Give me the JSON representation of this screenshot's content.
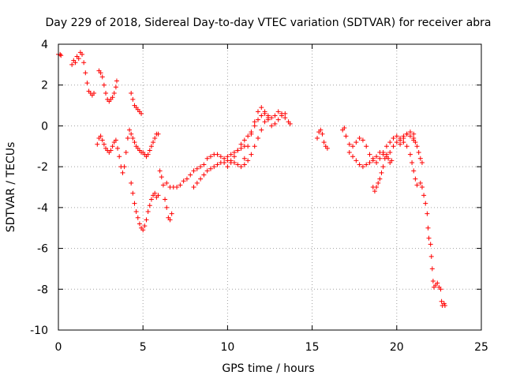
{
  "chart_data": {
    "type": "scatter",
    "title": "Day 229 of 2018, Sidereal Day-to-day VTEC variation (SDTVAR) for receiver abra",
    "xlabel": "GPS time / hours",
    "ylabel": "SDTVAR / TECUs",
    "xlim": [
      0,
      25
    ],
    "ylim": [
      -10,
      4
    ],
    "xticks": [
      "0",
      "5",
      "10",
      "15",
      "20",
      "25"
    ],
    "yticks": [
      "4",
      "2",
      "0",
      "-2",
      "-4",
      "-6",
      "-8",
      "-10"
    ],
    "grid": true,
    "marker": "+",
    "marker_color": "#ff0000",
    "series": [
      {
        "name": "SDTVAR",
        "points": [
          [
            0.0,
            3.5
          ],
          [
            0.1,
            3.5
          ],
          [
            0.15,
            3.45
          ],
          [
            0.8,
            3.0
          ],
          [
            0.9,
            3.2
          ],
          [
            1.0,
            3.1
          ],
          [
            1.1,
            3.4
          ],
          [
            1.2,
            3.3
          ],
          [
            1.3,
            3.6
          ],
          [
            1.4,
            3.5
          ],
          [
            1.5,
            3.1
          ],
          [
            1.6,
            2.6
          ],
          [
            1.7,
            2.1
          ],
          [
            1.8,
            1.7
          ],
          [
            1.9,
            1.6
          ],
          [
            2.0,
            1.5
          ],
          [
            2.1,
            1.6
          ],
          [
            2.4,
            2.7
          ],
          [
            2.5,
            2.6
          ],
          [
            2.6,
            2.4
          ],
          [
            2.7,
            2.0
          ],
          [
            2.8,
            1.6
          ],
          [
            2.9,
            1.3
          ],
          [
            3.0,
            1.2
          ],
          [
            3.1,
            1.3
          ],
          [
            3.2,
            1.4
          ],
          [
            3.3,
            1.6
          ],
          [
            3.4,
            1.9
          ],
          [
            3.45,
            2.2
          ],
          [
            2.3,
            -0.9
          ],
          [
            2.4,
            -0.6
          ],
          [
            2.5,
            -0.5
          ],
          [
            2.6,
            -0.7
          ],
          [
            2.7,
            -0.9
          ],
          [
            2.8,
            -1.1
          ],
          [
            2.9,
            -1.2
          ],
          [
            3.0,
            -1.3
          ],
          [
            3.1,
            -1.2
          ],
          [
            3.2,
            -1.0
          ],
          [
            3.3,
            -0.8
          ],
          [
            3.4,
            -0.7
          ],
          [
            3.5,
            -1.1
          ],
          [
            3.6,
            -1.5
          ],
          [
            3.7,
            -2.0
          ],
          [
            3.8,
            -2.3
          ],
          [
            3.9,
            -2.0
          ],
          [
            4.0,
            -1.3
          ],
          [
            4.1,
            -0.6
          ],
          [
            4.2,
            -0.2
          ],
          [
            4.3,
            -0.4
          ],
          [
            4.4,
            -0.6
          ],
          [
            4.5,
            -0.8
          ],
          [
            4.6,
            -1.0
          ],
          [
            4.7,
            -1.1
          ],
          [
            4.8,
            -1.2
          ],
          [
            4.9,
            -1.3
          ],
          [
            5.0,
            -1.3
          ],
          [
            5.1,
            -1.4
          ],
          [
            5.2,
            -1.5
          ],
          [
            5.3,
            -1.4
          ],
          [
            5.4,
            -1.2
          ],
          [
            5.5,
            -1.0
          ],
          [
            5.6,
            -0.8
          ],
          [
            5.7,
            -0.6
          ],
          [
            5.8,
            -0.4
          ],
          [
            5.9,
            -0.4
          ],
          [
            4.3,
            1.6
          ],
          [
            4.4,
            1.3
          ],
          [
            4.5,
            1.0
          ],
          [
            4.6,
            0.9
          ],
          [
            4.7,
            0.8
          ],
          [
            4.8,
            0.7
          ],
          [
            4.9,
            0.6
          ],
          [
            4.3,
            -2.8
          ],
          [
            4.4,
            -3.3
          ],
          [
            4.5,
            -3.8
          ],
          [
            4.6,
            -4.2
          ],
          [
            4.7,
            -4.5
          ],
          [
            4.8,
            -4.8
          ],
          [
            4.9,
            -5.0
          ],
          [
            5.0,
            -5.1
          ],
          [
            5.1,
            -4.9
          ],
          [
            5.2,
            -4.6
          ],
          [
            5.3,
            -4.2
          ],
          [
            5.4,
            -3.9
          ],
          [
            5.5,
            -3.6
          ],
          [
            5.6,
            -3.4
          ],
          [
            5.7,
            -3.3
          ],
          [
            5.8,
            -3.5
          ],
          [
            5.9,
            -3.4
          ],
          [
            6.0,
            -2.2
          ],
          [
            6.1,
            -2.5
          ],
          [
            6.2,
            -2.9
          ],
          [
            6.3,
            -3.6
          ],
          [
            6.4,
            -4.0
          ],
          [
            6.5,
            -4.5
          ],
          [
            6.6,
            -4.6
          ],
          [
            6.7,
            -4.3
          ],
          [
            6.4,
            -2.8
          ],
          [
            6.6,
            -3.0
          ],
          [
            6.8,
            -3.0
          ],
          [
            7.0,
            -3.0
          ],
          [
            7.2,
            -2.9
          ],
          [
            7.4,
            -2.7
          ],
          [
            7.6,
            -2.6
          ],
          [
            7.8,
            -2.4
          ],
          [
            8.0,
            -2.2
          ],
          [
            8.2,
            -2.1
          ],
          [
            8.4,
            -2.0
          ],
          [
            8.6,
            -1.9
          ],
          [
            8.8,
            -1.6
          ],
          [
            9.0,
            -1.5
          ],
          [
            9.2,
            -1.4
          ],
          [
            9.4,
            -1.4
          ],
          [
            9.6,
            -1.5
          ],
          [
            9.8,
            -1.6
          ],
          [
            10.0,
            -1.5
          ],
          [
            10.2,
            -1.4
          ],
          [
            10.4,
            -1.3
          ],
          [
            10.6,
            -1.2
          ],
          [
            10.8,
            -1.1
          ],
          [
            11.0,
            -1.0
          ],
          [
            8.0,
            -3.0
          ],
          [
            8.2,
            -2.8
          ],
          [
            8.4,
            -2.6
          ],
          [
            8.6,
            -2.4
          ],
          [
            8.8,
            -2.2
          ],
          [
            9.0,
            -2.1
          ],
          [
            9.2,
            -2.0
          ],
          [
            9.4,
            -1.9
          ],
          [
            9.6,
            -1.8
          ],
          [
            9.8,
            -1.8
          ],
          [
            10.0,
            -1.7
          ],
          [
            10.2,
            -1.7
          ],
          [
            10.4,
            -1.8
          ],
          [
            10.6,
            -1.9
          ],
          [
            10.8,
            -2.0
          ],
          [
            11.0,
            -1.9
          ],
          [
            11.2,
            -1.7
          ],
          [
            11.4,
            -1.4
          ],
          [
            11.6,
            -1.0
          ],
          [
            11.8,
            -0.6
          ],
          [
            12.0,
            -0.2
          ],
          [
            12.2,
            0.2
          ],
          [
            12.4,
            0.4
          ],
          [
            10.0,
            -2.0
          ],
          [
            10.2,
            -1.8
          ],
          [
            10.4,
            -1.5
          ],
          [
            10.6,
            -1.2
          ],
          [
            10.8,
            -0.9
          ],
          [
            11.0,
            -0.7
          ],
          [
            11.2,
            -0.5
          ],
          [
            11.4,
            -0.3
          ],
          [
            11.6,
            0.0
          ],
          [
            11.8,
            0.3
          ],
          [
            12.0,
            0.5
          ],
          [
            12.2,
            0.6
          ],
          [
            12.4,
            0.5
          ],
          [
            12.6,
            0.4
          ],
          [
            12.8,
            0.5
          ],
          [
            13.0,
            0.7
          ],
          [
            13.2,
            0.6
          ],
          [
            13.4,
            0.4
          ],
          [
            13.6,
            0.2
          ],
          [
            13.7,
            0.1
          ],
          [
            11.0,
            -1.6
          ],
          [
            11.2,
            -1.0
          ],
          [
            11.4,
            -0.4
          ],
          [
            11.6,
            0.2
          ],
          [
            11.8,
            0.7
          ],
          [
            12.0,
            0.9
          ],
          [
            12.2,
            0.7
          ],
          [
            12.4,
            0.3
          ],
          [
            12.6,
            0.0
          ],
          [
            12.8,
            0.1
          ],
          [
            13.0,
            0.3
          ],
          [
            13.2,
            0.5
          ],
          [
            13.4,
            0.6
          ],
          [
            15.3,
            -0.6
          ],
          [
            15.4,
            -0.3
          ],
          [
            15.5,
            -0.2
          ],
          [
            15.6,
            -0.4
          ],
          [
            15.7,
            -0.8
          ],
          [
            15.8,
            -1.0
          ],
          [
            15.9,
            -1.1
          ],
          [
            16.8,
            -0.2
          ],
          [
            16.9,
            -0.1
          ],
          [
            17.0,
            -0.5
          ],
          [
            17.2,
            -0.9
          ],
          [
            17.4,
            -1.0
          ],
          [
            17.6,
            -0.8
          ],
          [
            17.8,
            -0.6
          ],
          [
            18.0,
            -0.7
          ],
          [
            18.2,
            -1.0
          ],
          [
            18.4,
            -1.4
          ],
          [
            18.6,
            -1.7
          ],
          [
            18.8,
            -1.8
          ],
          [
            19.0,
            -1.6
          ],
          [
            19.2,
            -1.3
          ],
          [
            19.4,
            -1.0
          ],
          [
            19.6,
            -0.8
          ],
          [
            19.8,
            -0.6
          ],
          [
            20.0,
            -0.5
          ],
          [
            20.2,
            -0.6
          ],
          [
            20.4,
            -0.5
          ],
          [
            20.6,
            -0.4
          ],
          [
            20.8,
            -0.5
          ],
          [
            21.0,
            -0.7
          ],
          [
            17.2,
            -1.3
          ],
          [
            17.4,
            -1.5
          ],
          [
            17.6,
            -1.7
          ],
          [
            17.8,
            -1.9
          ],
          [
            18.0,
            -2.0
          ],
          [
            18.2,
            -1.9
          ],
          [
            18.4,
            -1.8
          ],
          [
            18.6,
            -1.6
          ],
          [
            18.8,
            -1.5
          ],
          [
            19.0,
            -1.3
          ],
          [
            19.2,
            -1.4
          ],
          [
            19.4,
            -1.5
          ],
          [
            19.6,
            -1.3
          ],
          [
            19.8,
            -1.0
          ],
          [
            20.0,
            -0.8
          ],
          [
            20.2,
            -0.7
          ],
          [
            20.4,
            -0.6
          ],
          [
            20.6,
            -0.4
          ],
          [
            20.8,
            -0.3
          ],
          [
            21.0,
            -0.4
          ],
          [
            18.6,
            -3.0
          ],
          [
            18.7,
            -3.2
          ],
          [
            18.8,
            -3.0
          ],
          [
            18.9,
            -2.8
          ],
          [
            19.0,
            -2.6
          ],
          [
            19.1,
            -2.3
          ],
          [
            19.2,
            -2.0
          ],
          [
            19.3,
            -1.6
          ],
          [
            19.4,
            -1.4
          ],
          [
            19.5,
            -1.6
          ],
          [
            19.6,
            -1.8
          ],
          [
            19.7,
            -1.7
          ],
          [
            20.2,
            -0.9
          ],
          [
            20.4,
            -0.8
          ],
          [
            20.6,
            -1.0
          ],
          [
            20.8,
            -1.4
          ],
          [
            20.9,
            -1.8
          ],
          [
            21.0,
            -2.2
          ],
          [
            21.1,
            -2.6
          ],
          [
            21.2,
            -2.9
          ],
          [
            21.0,
            -0.6
          ],
          [
            21.1,
            -0.8
          ],
          [
            21.2,
            -1.0
          ],
          [
            21.3,
            -1.3
          ],
          [
            21.4,
            -1.6
          ],
          [
            21.5,
            -1.8
          ],
          [
            21.4,
            -2.8
          ],
          [
            21.5,
            -3.0
          ],
          [
            21.6,
            -3.4
          ],
          [
            21.7,
            -3.8
          ],
          [
            21.8,
            -4.3
          ],
          [
            21.85,
            -5.0
          ],
          [
            21.9,
            -5.5
          ],
          [
            22.0,
            -5.8
          ],
          [
            22.05,
            -6.4
          ],
          [
            22.1,
            -7.0
          ],
          [
            22.15,
            -7.6
          ],
          [
            22.2,
            -7.9
          ],
          [
            22.3,
            -7.8
          ],
          [
            22.4,
            -7.7
          ],
          [
            22.5,
            -7.9
          ],
          [
            22.6,
            -8.0
          ],
          [
            22.65,
            -8.6
          ],
          [
            22.7,
            -8.8
          ],
          [
            22.8,
            -8.7
          ],
          [
            22.85,
            -8.8
          ]
        ]
      }
    ]
  }
}
